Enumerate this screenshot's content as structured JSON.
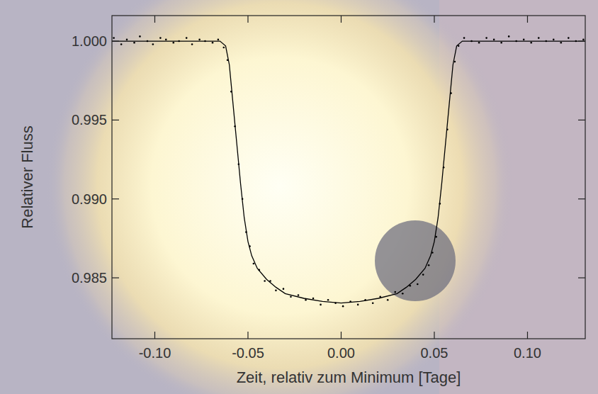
{
  "chart_data": {
    "type": "line",
    "x_label": "Zeit, relativ zum Minimum [Tage]",
    "y_label": "Relativer Fluss",
    "xlim": [
      -0.123,
      0.131
    ],
    "ylim": [
      0.98114,
      1.00162
    ],
    "xticks": [
      {
        "value": -0.1,
        "label": "-0.10"
      },
      {
        "value": -0.05,
        "label": "-0.05"
      },
      {
        "value": 0,
        "label": "0.00"
      },
      {
        "value": 0.05,
        "label": "0.05"
      },
      {
        "value": 0.1,
        "label": "0.10"
      }
    ],
    "yticks": [
      {
        "value": 0.985,
        "label": "0.985"
      },
      {
        "value": 0.99,
        "label": "0.990"
      },
      {
        "value": 0.995,
        "label": "0.995"
      },
      {
        "value": 1,
        "label": "1.000"
      }
    ],
    "grid": false,
    "series": [
      {
        "type": "scatter",
        "color": "#000000",
        "marker": "dot",
        "x": [
          -0.122,
          -0.118,
          -0.115,
          -0.111,
          -0.108,
          -0.104,
          -0.101,
          -0.097,
          -0.094,
          -0.09,
          -0.087,
          -0.083,
          -0.08,
          -0.076,
          -0.073,
          -0.069,
          -0.066,
          -0.063,
          -0.061,
          -0.059,
          -0.057,
          -0.055,
          -0.053,
          -0.051,
          -0.049,
          -0.047,
          -0.044,
          -0.041,
          -0.038,
          -0.035,
          -0.031,
          -0.027,
          -0.023,
          -0.019,
          -0.015,
          -0.011,
          -0.007,
          -0.003,
          0.001,
          0.005,
          0.009,
          0.013,
          0.017,
          0.021,
          0.025,
          0.029,
          0.033,
          0.037,
          0.041,
          0.044,
          0.047,
          0.049,
          0.051,
          0.053,
          0.055,
          0.057,
          0.059,
          0.061,
          0.063,
          0.066,
          0.07,
          0.074,
          0.078,
          0.082,
          0.086,
          0.09,
          0.094,
          0.098,
          0.102,
          0.106,
          0.11,
          0.114,
          0.118,
          0.122,
          0.126,
          0.13
        ],
        "values": [
          1.0002,
          0.9998,
          1.0001,
          0.9999,
          1.0003,
          1.0,
          0.9998,
          1.0002,
          1.0001,
          0.9999,
          1.0,
          1.0002,
          0.9998,
          1.0001,
          1.0,
          0.9999,
          1.0001,
          0.9996,
          0.9988,
          0.9968,
          0.9946,
          0.9922,
          0.99,
          0.9879,
          0.987,
          0.9859,
          0.9855,
          0.9848,
          0.9848,
          0.9842,
          0.9843,
          0.9838,
          0.9839,
          0.9836,
          0.9837,
          0.9833,
          0.9836,
          0.9834,
          0.9832,
          0.9835,
          0.9833,
          0.9836,
          0.9834,
          0.9838,
          0.9836,
          0.9841,
          0.984,
          0.9845,
          0.9846,
          0.9852,
          0.9858,
          0.9866,
          0.9876,
          0.9897,
          0.992,
          0.9944,
          0.9967,
          0.9987,
          0.9997,
          1.0002,
          1.0,
          0.9999,
          1.0002,
          1.0001,
          0.9999,
          1.0003,
          1.0,
          1.0001,
          0.9999,
          1.0002,
          1.0,
          1.0001,
          0.9999,
          1.0002,
          1.0,
          1.0001
        ]
      },
      {
        "type": "line",
        "color": "#000000",
        "line_style": "solid",
        "x": [
          -0.123,
          -0.07,
          -0.065,
          -0.062,
          -0.06,
          -0.058,
          -0.056,
          -0.054,
          -0.052,
          -0.05,
          -0.048,
          -0.045,
          -0.04,
          -0.035,
          -0.03,
          -0.02,
          -0.01,
          0,
          0.01,
          0.02,
          0.03,
          0.035,
          0.04,
          0.045,
          0.048,
          0.05,
          0.052,
          0.054,
          0.056,
          0.058,
          0.06,
          0.062,
          0.065,
          0.07,
          0.131
        ],
        "values": [
          1.0,
          1.0,
          1.0,
          0.9997,
          0.9985,
          0.996,
          0.9935,
          0.991,
          0.9888,
          0.9873,
          0.9864,
          0.9856,
          0.9849,
          0.9844,
          0.984,
          0.9837,
          0.9835,
          0.9834,
          0.9835,
          0.9837,
          0.984,
          0.9844,
          0.9849,
          0.9856,
          0.9864,
          0.9873,
          0.9888,
          0.991,
          0.9935,
          0.996,
          0.9985,
          0.9997,
          1.0,
          1.0,
          1.0
        ]
      }
    ]
  }
}
